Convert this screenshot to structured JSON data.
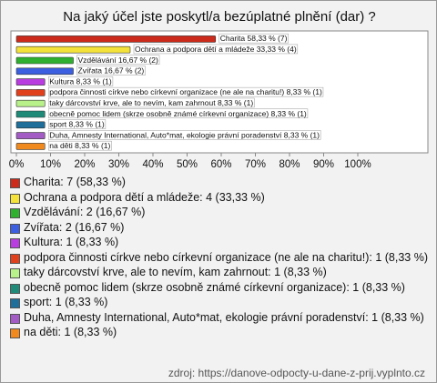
{
  "chart_data": {
    "type": "bar",
    "orientation": "horizontal",
    "title": "Na jaký účel jste poskytl/a bezúplatné plnění (dar) ?",
    "categories": [
      "Charita",
      "Ochrana a podpora dětí a mládeže",
      "Vzdělávání",
      "Zvířata",
      "Kultura",
      "podpora činnosti církve nebo církevní organizace (ne ale na charitu!)",
      "taky dárcovství krve, ale to nevím, kam zahrnout",
      "obecně pomoc lidem (skrze osobně známé církevní organizace)",
      "sport",
      "Duha, Amnesty International, Auto*mat, ekologie právní poradenství",
      "na děti"
    ],
    "values": [
      58.33,
      33.33,
      16.67,
      16.67,
      8.33,
      8.33,
      8.33,
      8.33,
      8.33,
      8.33,
      8.33
    ],
    "value_labels": [
      "Charita 58,33 % (7)",
      "Ochrana a podpora dětí a mládeže 33,33 % (4)",
      "Vzdělávání 16,67 % (2)",
      "Zvířata 16,67 % (2)",
      "Kultura 8,33 % (1)",
      "podpora činnosti církve nebo církevní organizace (ne ale na charitu!) 8,33 % (1)",
      "taky dárcovství krve, ale to nevím, kam zahrnout 8,33 % (1)",
      "obecně pomoc lidem (skrze osobně známé církevní organizace) 8,33 % (1)",
      "sport 8,33 % (1)",
      "Duha, Amnesty International, Auto*mat, ekologie právní poradenství 8,33 % (1)",
      "na děti 8,33 % (1)"
    ],
    "colors": [
      "#cc2a1a",
      "#f4e23a",
      "#2fb02f",
      "#3b5fe0",
      "#b93ce0",
      "#e0401c",
      "#b8f08a",
      "#1f8a78",
      "#1f6f9a",
      "#a25cc4",
      "#f08a1e"
    ],
    "legend": [
      "Charita: 7 (58,33 %)",
      "Ochrana a podpora dětí a mládeže: 4 (33,33 %)",
      "Vzdělávání: 2 (16,67 %)",
      "Zvířata: 2 (16,67 %)",
      "Kultura: 1 (8,33 %)",
      "podpora činnosti církve nebo církevní organizace (ne ale na charitu!): 1 (8,33 %)",
      "taky dárcovství krve, ale to nevím, kam zahrnout: 1 (8,33 %)",
      "obecně pomoc lidem (skrze osobně známé církevní organizace): 1 (8,33 %)",
      "sport: 1 (8,33 %)",
      "Duha, Amnesty International, Auto*mat, ekologie právní poradenství: 1 (8,33 %)",
      "na děti: 1 (8,33 %)"
    ],
    "xlim": [
      0,
      100
    ],
    "xticks": [
      {
        "value": 0,
        "label": "0%"
      },
      {
        "value": 10,
        "label": "10%"
      },
      {
        "value": 20,
        "label": "20%"
      },
      {
        "value": 30,
        "label": "30%"
      },
      {
        "value": 40,
        "label": "40%"
      },
      {
        "value": 50,
        "label": "50%"
      },
      {
        "value": 60,
        "label": "60%"
      },
      {
        "value": 70,
        "label": "70%"
      },
      {
        "value": 80,
        "label": "80%"
      },
      {
        "value": 90,
        "label": "90%"
      },
      {
        "value": 100,
        "label": "100%"
      }
    ],
    "source": "zdroj: https://danove-odpocty-u-dane-z-prij.vyplnto.cz"
  }
}
